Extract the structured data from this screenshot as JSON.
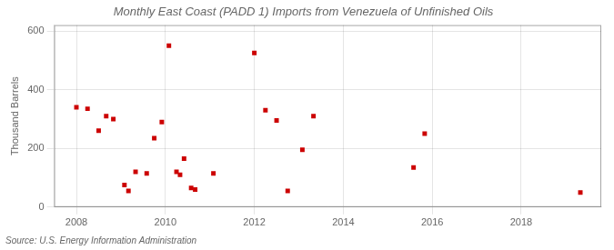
{
  "chart_data": {
    "type": "scatter",
    "title": "Monthly East Coast (PADD 1) Imports from Venezuela of Unfinished Oils",
    "ylabel": "Thousand Barrels",
    "annotations": [
      "Source: U.S. Energy Information Administration"
    ],
    "x": [
      2008.0,
      2008.25,
      2008.5,
      2008.67,
      2008.83,
      2009.08,
      2009.17,
      2009.33,
      2009.58,
      2009.75,
      2009.92,
      2010.08,
      2010.25,
      2010.33,
      2010.42,
      2010.58,
      2010.67,
      2011.08,
      2012.0,
      2012.25,
      2012.5,
      2012.75,
      2013.08,
      2013.33,
      2015.58,
      2015.83,
      2019.33
    ],
    "values": [
      340,
      335,
      260,
      310,
      300,
      75,
      55,
      120,
      115,
      235,
      290,
      550,
      120,
      110,
      165,
      65,
      60,
      115,
      525,
      330,
      295,
      55,
      195,
      310,
      135,
      250,
      50
    ],
    "color": "#cc0000",
    "marker": "square",
    "xlim": [
      2007.5,
      2019.8
    ],
    "ylim": [
      0,
      620
    ],
    "xticks": [
      2008,
      2010,
      2012,
      2014,
      2016,
      2018
    ],
    "yticks": [
      0,
      200,
      400,
      600
    ],
    "grid": true
  }
}
